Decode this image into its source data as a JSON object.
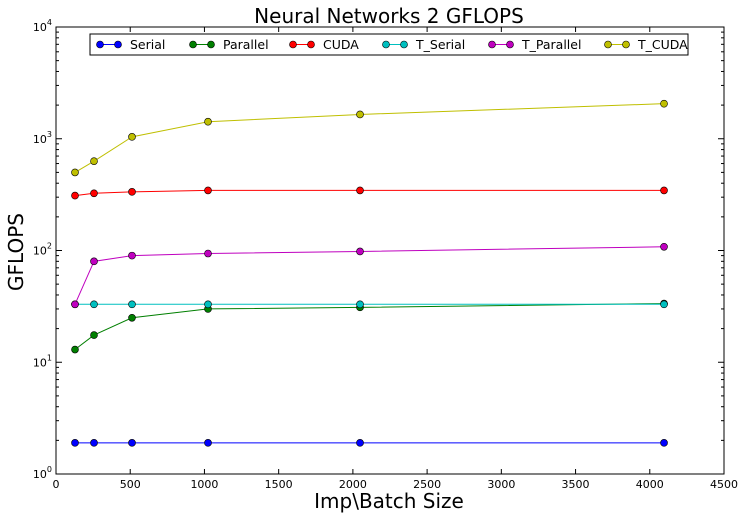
{
  "chart_data": {
    "type": "line",
    "title": "Neural Networks 2 GFLOPS",
    "xlabel": "Imp\\Batch Size",
    "ylabel": "GFLOPS",
    "xlim": [
      0,
      4500
    ],
    "ylim": [
      1,
      10000
    ],
    "yscale": "log",
    "x_ticks": [
      "0",
      "500",
      "1000",
      "1500",
      "2000",
      "2500",
      "3000",
      "3500",
      "4000",
      "4500"
    ],
    "y_ticks": [
      {
        "base": "10",
        "exp": "0"
      },
      {
        "base": "10",
        "exp": "1"
      },
      {
        "base": "10",
        "exp": "2"
      },
      {
        "base": "10",
        "exp": "3"
      },
      {
        "base": "10",
        "exp": "4"
      }
    ],
    "grid": false,
    "legend_position": "top",
    "x": [
      128,
      256,
      512,
      1024,
      2048,
      4096
    ],
    "series": [
      {
        "name": "Serial",
        "color": "#0000ff",
        "values": [
          1.9,
          1.9,
          1.9,
          1.9,
          1.9,
          1.9
        ]
      },
      {
        "name": "Parallel",
        "color": "#007f00",
        "values": [
          13,
          17.5,
          25,
          30,
          31,
          33.5
        ]
      },
      {
        "name": "CUDA",
        "color": "#ff0000",
        "values": [
          310,
          325,
          335,
          345,
          345,
          345
        ]
      },
      {
        "name": "T_Serial",
        "color": "#00bfbf",
        "values": [
          33,
          33,
          33,
          33,
          33,
          33
        ]
      },
      {
        "name": "T_Parallel",
        "color": "#bf00bf",
        "values": [
          33,
          80,
          90,
          94,
          98,
          108
        ]
      },
      {
        "name": "T_CUDA",
        "color": "#bfbf00",
        "values": [
          500,
          630,
          1040,
          1420,
          1650,
          2060
        ]
      }
    ]
  }
}
